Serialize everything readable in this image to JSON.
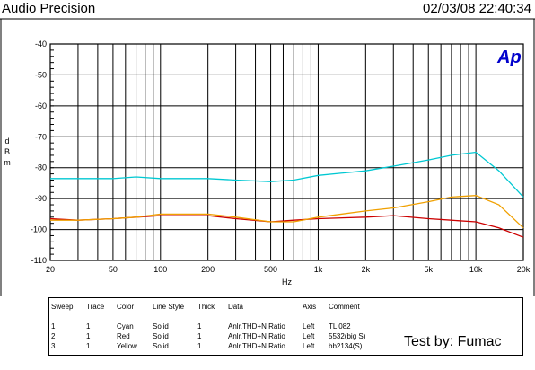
{
  "header": {
    "title": "Audio Precision",
    "timestamp": "02/03/08 22:40:34"
  },
  "logo_text": "Ap",
  "chart_data": {
    "type": "line",
    "xscale": "log",
    "xlabel": "Hz",
    "ylabel": "dBm",
    "xlim": [
      20,
      20000
    ],
    "ylim": [
      -110,
      -40
    ],
    "grid": true,
    "x_ticks": [
      {
        "v": 20,
        "label": "20"
      },
      {
        "v": 50,
        "label": "50"
      },
      {
        "v": 100,
        "label": "100"
      },
      {
        "v": 200,
        "label": "200"
      },
      {
        "v": 500,
        "label": "500"
      },
      {
        "v": 1000,
        "label": "1k"
      },
      {
        "v": 2000,
        "label": "2k"
      },
      {
        "v": 5000,
        "label": "5k"
      },
      {
        "v": 10000,
        "label": "10k"
      },
      {
        "v": 20000,
        "label": "20k"
      }
    ],
    "y_ticks": [
      -40,
      -50,
      -60,
      -70,
      -80,
      -90,
      -100,
      -110
    ],
    "series": [
      {
        "name": "TL 082",
        "color": "#00c8d2",
        "x": [
          20,
          30,
          50,
          70,
          100,
          200,
          300,
          500,
          700,
          1000,
          2000,
          3000,
          5000,
          7000,
          10000,
          14000,
          20000
        ],
        "y": [
          -83.5,
          -83.5,
          -83.5,
          -83.0,
          -83.5,
          -83.5,
          -84.0,
          -84.5,
          -84.0,
          -82.5,
          -81.0,
          -79.5,
          -77.5,
          -76.0,
          -75.0,
          -81.0,
          -89.5
        ]
      },
      {
        "name": "5532(big S)",
        "color": "#cc0000",
        "x": [
          20,
          30,
          50,
          70,
          100,
          200,
          300,
          500,
          700,
          1000,
          2000,
          3000,
          5000,
          7000,
          10000,
          14000,
          20000
        ],
        "y": [
          -96.5,
          -97.0,
          -96.5,
          -96.0,
          -95.5,
          -95.5,
          -96.5,
          -97.5,
          -97.0,
          -96.5,
          -96.0,
          -95.5,
          -96.5,
          -97.0,
          -97.5,
          -99.5,
          -102.5
        ]
      },
      {
        "name": "bb2134(S)",
        "color": "#f0a000",
        "x": [
          20,
          30,
          50,
          70,
          100,
          200,
          300,
          500,
          700,
          1000,
          2000,
          3000,
          5000,
          7000,
          10000,
          14000,
          20000
        ],
        "y": [
          -97.0,
          -97.0,
          -96.5,
          -96.0,
          -95.0,
          -95.0,
          -96.0,
          -97.5,
          -97.5,
          -96.0,
          -94.0,
          -93.0,
          -91.0,
          -89.5,
          -89.0,
          -92.0,
          -99.5
        ]
      }
    ]
  },
  "legend": {
    "headers": [
      "Sweep",
      "Trace",
      "Color",
      "Line Style",
      "Thick",
      "Data",
      "Axis",
      "Comment"
    ],
    "rows": [
      [
        "1",
        "1",
        "Cyan",
        "Solid",
        "1",
        "Anlr.THD+N Ratio",
        "Left",
        "TL 082"
      ],
      [
        "2",
        "1",
        "Red",
        "Solid",
        "1",
        "Anlr.THD+N Ratio",
        "Left",
        "5532(big S)"
      ],
      [
        "3",
        "1",
        "Yellow",
        "Solid",
        "1",
        "Anlr.THD+N Ratio",
        "Left",
        "bb2134(S)"
      ]
    ]
  },
  "footer_note": "Test by:  Fumac"
}
